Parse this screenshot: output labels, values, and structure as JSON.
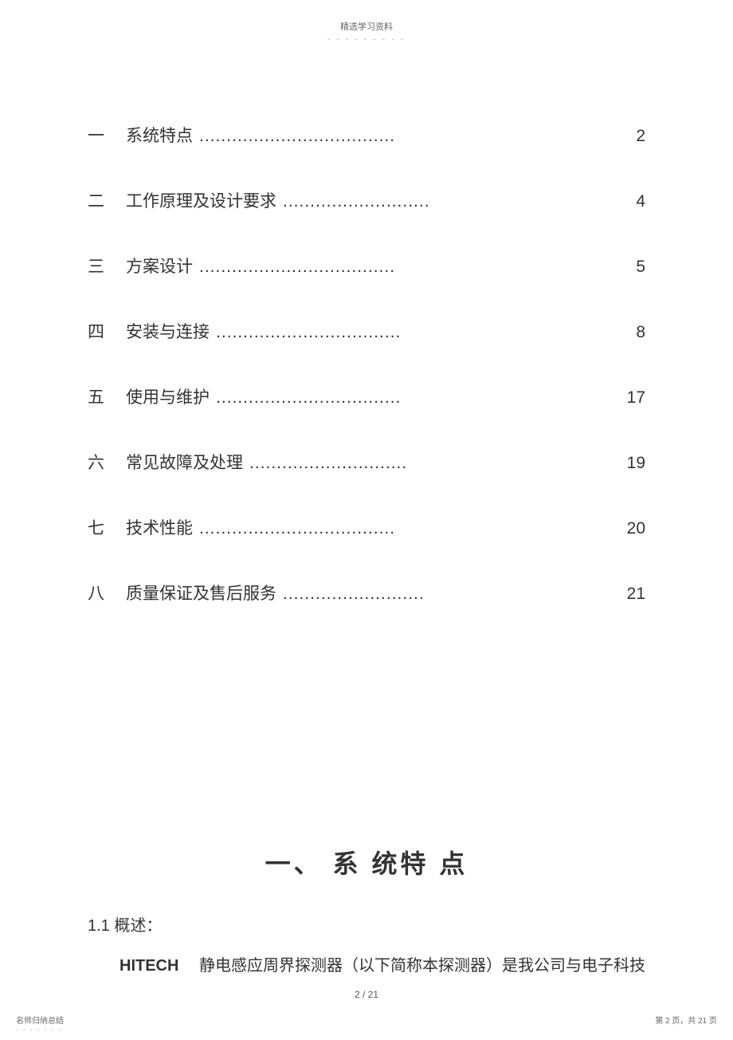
{
  "header": {
    "title": "精选学习资料",
    "dots": "- - - - - - - - -"
  },
  "toc": {
    "items": [
      {
        "num": "一",
        "title": "系统特点",
        "dots": "....................................",
        "page": "2"
      },
      {
        "num": "二",
        "title": "工作原理及设计要求",
        "dots": "...........................",
        "page": "4"
      },
      {
        "num": "三",
        "title": "方案设计",
        "dots": "....................................",
        "page": "5"
      },
      {
        "num": "四",
        "title": "安装与连接",
        "dots": "..................................",
        "page": "8"
      },
      {
        "num": "五",
        "title": "使用与维护",
        "dots": "..................................",
        "page": "17"
      },
      {
        "num": "六",
        "title": "常见故障及处理",
        "dots": ".............................",
        "page": "19"
      },
      {
        "num": "七",
        "title": "技术性能",
        "dots": "....................................",
        "page": "20"
      },
      {
        "num": "八",
        "title": "质量保证及售后服务",
        "dots": "..........................",
        "page": "21"
      }
    ]
  },
  "section": {
    "heading": "一、 系 统特 点",
    "subsection_title": "1.1  概述：",
    "body_bold": "HITECH",
    "body_text": "　 静电感应周界探测器（以下简称本探测器）是我公司与电子科技"
  },
  "footer": {
    "page_indicator": "2 / 21",
    "left_text": "名师归纳总结",
    "left_dots": "- - - - - - -",
    "right_text": "第 2 页，共 21 页"
  },
  "styles": {
    "background_color": "#ffffff",
    "text_color": "#333333",
    "header_color": "#666666",
    "toc_fontsize": 21,
    "heading_fontsize": 32,
    "body_fontsize": 20,
    "footer_fontsize": 10
  }
}
